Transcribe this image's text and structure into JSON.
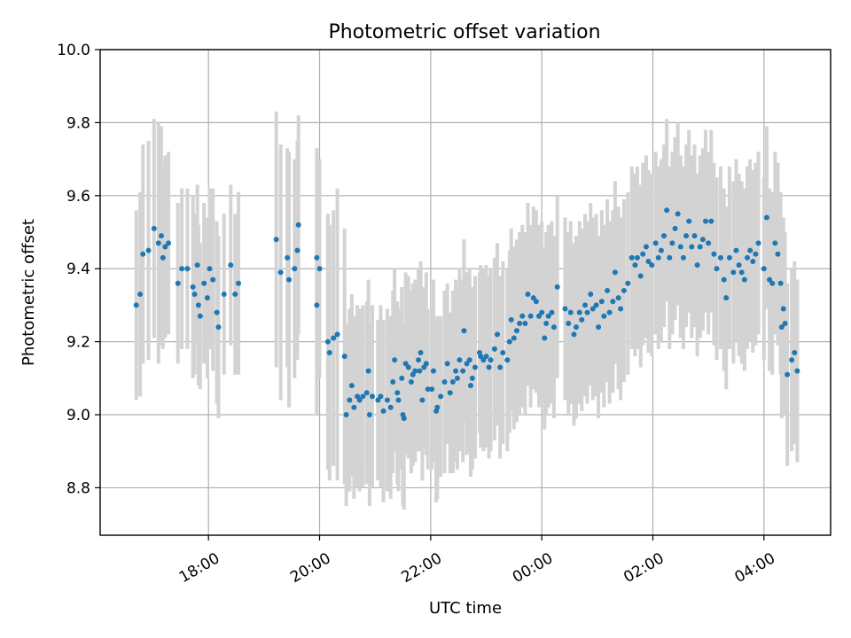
{
  "chart_data": {
    "type": "scatter",
    "title": "Photometric offset variation",
    "xlabel": "UTC time",
    "ylabel": "Photometric offset",
    "x_unit": "hours since 00:00 UTC",
    "xlim": [
      -7.95,
      5.2
    ],
    "ylim": [
      8.67,
      10.0
    ],
    "xticks": [
      {
        "value": -6,
        "label": "18:00"
      },
      {
        "value": -4,
        "label": "20:00"
      },
      {
        "value": -2,
        "label": "22:00"
      },
      {
        "value": 0,
        "label": "00:00"
      },
      {
        "value": 2,
        "label": "02:00"
      },
      {
        "value": 4,
        "label": "04:00"
      }
    ],
    "yticks": [
      {
        "value": 8.8,
        "label": "8.8"
      },
      {
        "value": 9.0,
        "label": "9.0"
      },
      {
        "value": 9.2,
        "label": "9.2"
      },
      {
        "value": 9.4,
        "label": "9.4"
      },
      {
        "value": 9.6,
        "label": "9.6"
      },
      {
        "value": 9.8,
        "label": "9.8"
      },
      {
        "value": 10.0,
        "label": "10.0"
      }
    ],
    "grid": true,
    "colors": {
      "points": "#1f77b4",
      "errorbars": "#d3d3d3"
    },
    "series": [
      {
        "name": "Photometric offset",
        "points": [
          [
            -7.3,
            9.3,
            0.26
          ],
          [
            -7.23,
            9.33,
            0.28
          ],
          [
            -7.18,
            9.44,
            0.3
          ],
          [
            -7.08,
            9.45,
            0.3
          ],
          [
            -6.98,
            9.51,
            0.3
          ],
          [
            -6.9,
            9.47,
            0.33
          ],
          [
            -6.85,
            9.49,
            0.3
          ],
          [
            -6.82,
            9.43,
            0.25
          ],
          [
            -6.78,
            9.46,
            0.25
          ],
          [
            -6.72,
            9.47,
            0.25
          ],
          [
            -6.55,
            9.36,
            0.22
          ],
          [
            -6.48,
            9.4,
            0.22
          ],
          [
            -6.38,
            9.4,
            0.22
          ],
          [
            -6.28,
            9.35,
            0.25
          ],
          [
            -6.25,
            9.33,
            0.22
          ],
          [
            -6.2,
            9.41,
            0.22
          ],
          [
            -6.18,
            9.3,
            0.22
          ],
          [
            -6.15,
            9.27,
            0.2
          ],
          [
            -6.08,
            9.36,
            0.22
          ],
          [
            -6.02,
            9.32,
            0.22
          ],
          [
            -5.98,
            9.4,
            0.22
          ],
          [
            -5.92,
            9.37,
            0.25
          ],
          [
            -5.85,
            9.28,
            0.25
          ],
          [
            -5.82,
            9.24,
            0.25
          ],
          [
            -5.72,
            9.33,
            0.22
          ],
          [
            -5.6,
            9.41,
            0.22
          ],
          [
            -5.52,
            9.33,
            0.22
          ],
          [
            -5.46,
            9.36,
            0.25
          ],
          [
            -4.78,
            9.48,
            0.35
          ],
          [
            -4.7,
            9.39,
            0.35
          ],
          [
            -4.58,
            9.43,
            0.3
          ],
          [
            -4.55,
            9.37,
            0.35
          ],
          [
            -4.45,
            9.4,
            0.3
          ],
          [
            -4.4,
            9.45,
            0.3
          ],
          [
            -4.38,
            9.52,
            0.3
          ],
          [
            -4.05,
            9.43,
            0.3
          ],
          [
            -4.0,
            9.4,
            0.3
          ],
          [
            -4.05,
            9.3,
            0.3
          ],
          [
            -3.85,
            9.2,
            0.35
          ],
          [
            -3.82,
            9.17,
            0.35
          ],
          [
            -3.75,
            9.21,
            0.35
          ],
          [
            -3.68,
            9.22,
            0.4
          ],
          [
            -3.55,
            9.16,
            0.35
          ],
          [
            -3.52,
            9.0,
            0.25
          ],
          [
            -3.46,
            9.04,
            0.25
          ],
          [
            -3.42,
            9.08,
            0.25
          ],
          [
            -3.38,
            9.02,
            0.25
          ],
          [
            -3.32,
            9.05,
            0.25
          ],
          [
            -3.28,
            9.04,
            0.25
          ],
          [
            -3.22,
            9.05,
            0.25
          ],
          [
            -3.15,
            9.06,
            0.25
          ],
          [
            -3.12,
            9.12,
            0.25
          ],
          [
            -3.1,
            9.0,
            0.25
          ],
          [
            -3.05,
            9.05,
            0.25
          ],
          [
            -2.95,
            9.04,
            0.22
          ],
          [
            -2.9,
            9.05,
            0.25
          ],
          [
            -2.85,
            9.01,
            0.25
          ],
          [
            -2.78,
            9.04,
            0.25
          ],
          [
            -2.72,
            9.02,
            0.25
          ],
          [
            -2.68,
            9.09,
            0.25
          ],
          [
            -2.65,
            9.15,
            0.25
          ],
          [
            -2.6,
            9.06,
            0.25
          ],
          [
            -2.58,
            9.04,
            0.25
          ],
          [
            -2.52,
            9.1,
            0.25
          ],
          [
            -2.45,
            9.14,
            0.25
          ],
          [
            -2.5,
            9.0,
            0.25
          ],
          [
            -2.48,
            8.99,
            0.25
          ],
          [
            -2.4,
            9.13,
            0.25
          ],
          [
            -2.35,
            9.09,
            0.25
          ],
          [
            -2.32,
            9.11,
            0.25
          ],
          [
            -2.28,
            9.12,
            0.25
          ],
          [
            -2.22,
            9.15,
            0.25
          ],
          [
            -2.2,
            9.12,
            0.22
          ],
          [
            -2.18,
            9.17,
            0.25
          ],
          [
            -2.15,
            9.04,
            0.22
          ],
          [
            -2.12,
            9.13,
            0.22
          ],
          [
            -2.08,
            9.14,
            0.25
          ],
          [
            -2.05,
            9.07,
            0.22
          ],
          [
            -1.98,
            9.07,
            0.22
          ],
          [
            -1.95,
            9.12,
            0.25
          ],
          [
            -1.9,
            9.01,
            0.25
          ],
          [
            -1.88,
            9.02,
            0.25
          ],
          [
            -1.82,
            9.05,
            0.22
          ],
          [
            -1.75,
            9.09,
            0.25
          ],
          [
            -1.7,
            9.14,
            0.22
          ],
          [
            -1.65,
            9.06,
            0.22
          ],
          [
            -1.6,
            9.09,
            0.25
          ],
          [
            -1.55,
            9.12,
            0.25
          ],
          [
            -1.52,
            9.1,
            0.25
          ],
          [
            -1.48,
            9.15,
            0.25
          ],
          [
            -1.42,
            9.12,
            0.25
          ],
          [
            -1.4,
            9.23,
            0.25
          ],
          [
            -1.35,
            9.14,
            0.25
          ],
          [
            -1.3,
            9.15,
            0.25
          ],
          [
            -1.28,
            9.08,
            0.25
          ],
          [
            -1.25,
            9.1,
            0.25
          ],
          [
            -1.2,
            9.13,
            0.25
          ],
          [
            -1.12,
            9.17,
            0.22
          ],
          [
            -1.1,
            9.16,
            0.25
          ],
          [
            -1.05,
            9.15,
            0.25
          ],
          [
            -1.0,
            9.16,
            0.25
          ],
          [
            -0.95,
            9.13,
            0.25
          ],
          [
            -0.92,
            9.15,
            0.25
          ],
          [
            -0.85,
            9.18,
            0.25
          ],
          [
            -0.8,
            9.22,
            0.25
          ],
          [
            -0.75,
            9.13,
            0.25
          ],
          [
            -0.7,
            9.17,
            0.25
          ],
          [
            -0.62,
            9.15,
            0.25
          ],
          [
            -0.58,
            9.2,
            0.25
          ],
          [
            -0.55,
            9.26,
            0.25
          ],
          [
            -0.5,
            9.21,
            0.25
          ],
          [
            -0.45,
            9.23,
            0.25
          ],
          [
            -0.4,
            9.25,
            0.25
          ],
          [
            -0.35,
            9.27,
            0.25
          ],
          [
            -0.3,
            9.25,
            0.25
          ],
          [
            -0.25,
            9.33,
            0.25
          ],
          [
            -0.2,
            9.27,
            0.25
          ],
          [
            -0.15,
            9.32,
            0.25
          ],
          [
            -0.1,
            9.31,
            0.25
          ],
          [
            -0.05,
            9.27,
            0.25
          ],
          [
            0.0,
            9.28,
            0.25
          ],
          [
            0.05,
            9.21,
            0.25
          ],
          [
            0.08,
            9.25,
            0.25
          ],
          [
            0.12,
            9.27,
            0.25
          ],
          [
            0.18,
            9.28,
            0.25
          ],
          [
            0.22,
            9.24,
            0.25
          ],
          [
            0.28,
            9.35,
            0.25
          ],
          [
            0.42,
            9.29,
            0.25
          ],
          [
            0.48,
            9.25,
            0.25
          ],
          [
            0.52,
            9.28,
            0.25
          ],
          [
            0.58,
            9.22,
            0.25
          ],
          [
            0.62,
            9.24,
            0.25
          ],
          [
            0.68,
            9.28,
            0.25
          ],
          [
            0.72,
            9.26,
            0.25
          ],
          [
            0.78,
            9.3,
            0.25
          ],
          [
            0.82,
            9.28,
            0.25
          ],
          [
            0.88,
            9.33,
            0.25
          ],
          [
            0.92,
            9.29,
            0.25
          ],
          [
            0.98,
            9.3,
            0.25
          ],
          [
            1.02,
            9.24,
            0.25
          ],
          [
            1.08,
            9.31,
            0.25
          ],
          [
            1.12,
            9.27,
            0.25
          ],
          [
            1.18,
            9.34,
            0.25
          ],
          [
            1.22,
            9.28,
            0.25
          ],
          [
            1.28,
            9.31,
            0.25
          ],
          [
            1.32,
            9.39,
            0.25
          ],
          [
            1.38,
            9.32,
            0.25
          ],
          [
            1.42,
            9.29,
            0.25
          ],
          [
            1.48,
            9.34,
            0.25
          ],
          [
            1.55,
            9.36,
            0.25
          ],
          [
            1.62,
            9.43,
            0.25
          ],
          [
            1.68,
            9.41,
            0.25
          ],
          [
            1.72,
            9.43,
            0.25
          ],
          [
            1.78,
            9.38,
            0.25
          ],
          [
            1.82,
            9.44,
            0.25
          ],
          [
            1.88,
            9.46,
            0.25
          ],
          [
            1.92,
            9.42,
            0.25
          ],
          [
            1.98,
            9.41,
            0.25
          ],
          [
            2.05,
            9.47,
            0.25
          ],
          [
            2.1,
            9.43,
            0.25
          ],
          [
            2.15,
            9.45,
            0.25
          ],
          [
            2.2,
            9.49,
            0.25
          ],
          [
            2.25,
            9.56,
            0.25
          ],
          [
            2.3,
            9.43,
            0.25
          ],
          [
            2.35,
            9.47,
            0.25
          ],
          [
            2.4,
            9.51,
            0.25
          ],
          [
            2.45,
            9.55,
            0.25
          ],
          [
            2.5,
            9.46,
            0.25
          ],
          [
            2.55,
            9.43,
            0.25
          ],
          [
            2.6,
            9.49,
            0.25
          ],
          [
            2.65,
            9.53,
            0.25
          ],
          [
            2.7,
            9.46,
            0.25
          ],
          [
            2.75,
            9.49,
            0.25
          ],
          [
            2.8,
            9.41,
            0.25
          ],
          [
            2.85,
            9.46,
            0.25
          ],
          [
            2.9,
            9.48,
            0.25
          ],
          [
            2.95,
            9.53,
            0.25
          ],
          [
            3.0,
            9.47,
            0.25
          ],
          [
            3.05,
            9.53,
            0.25
          ],
          [
            3.1,
            9.44,
            0.25
          ],
          [
            3.15,
            9.4,
            0.25
          ],
          [
            3.22,
            9.43,
            0.25
          ],
          [
            3.28,
            9.37,
            0.25
          ],
          [
            3.32,
            9.32,
            0.25
          ],
          [
            3.38,
            9.43,
            0.25
          ],
          [
            3.45,
            9.39,
            0.25
          ],
          [
            3.5,
            9.45,
            0.25
          ],
          [
            3.55,
            9.41,
            0.25
          ],
          [
            3.6,
            9.39,
            0.25
          ],
          [
            3.65,
            9.37,
            0.25
          ],
          [
            3.7,
            9.43,
            0.25
          ],
          [
            3.75,
            9.45,
            0.25
          ],
          [
            3.8,
            9.42,
            0.25
          ],
          [
            3.85,
            9.44,
            0.25
          ],
          [
            3.9,
            9.47,
            0.25
          ],
          [
            4.0,
            9.4,
            0.25
          ],
          [
            4.05,
            9.54,
            0.25
          ],
          [
            4.1,
            9.37,
            0.25
          ],
          [
            4.15,
            9.36,
            0.25
          ],
          [
            4.2,
            9.47,
            0.25
          ],
          [
            4.25,
            9.44,
            0.25
          ],
          [
            4.3,
            9.36,
            0.25
          ],
          [
            4.32,
            9.24,
            0.25
          ],
          [
            4.35,
            9.29,
            0.25
          ],
          [
            4.38,
            9.25,
            0.25
          ],
          [
            4.42,
            9.11,
            0.25
          ],
          [
            4.5,
            9.15,
            0.25
          ],
          [
            4.55,
            9.17,
            0.25
          ],
          [
            4.6,
            9.12,
            0.25
          ]
        ]
      }
    ]
  }
}
